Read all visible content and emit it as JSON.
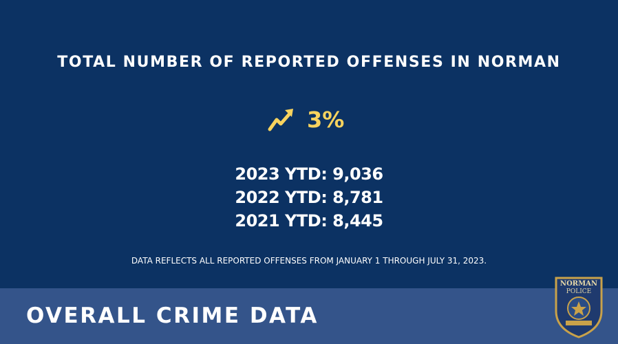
{
  "header": {
    "title": "TOTAL NUMBER OF REPORTED OFFENSES IN NORMAN"
  },
  "change": {
    "value": "3%"
  },
  "stats": [
    "2023 YTD: 9,036",
    "2022 YTD: 8,781",
    "2021 YTD: 8,445"
  ],
  "note": "DATA REFLECTS ALL REPORTED OFFENSES FROM JANUARY 1 THROUGH JULY 31, 2023.",
  "footer": {
    "title": "OVERALL CRIME DATA"
  },
  "badge": {
    "top": "NORMAN",
    "middle": "POLICE"
  }
}
